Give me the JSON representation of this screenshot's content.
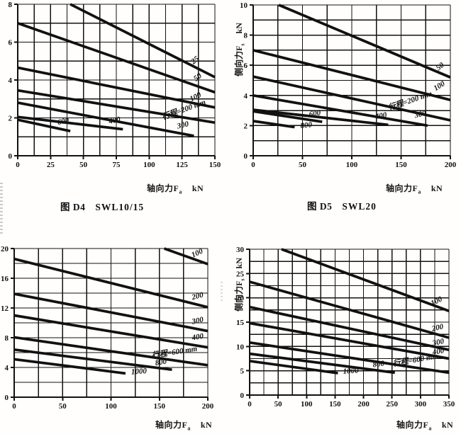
{
  "page": {
    "background": "#ffffff",
    "ink": "#111111"
  },
  "chart_data": [
    {
      "id": "top-left",
      "type": "line",
      "caption_fig": "图 D4",
      "caption_model": "SWL10/15",
      "xlabel": "轴向力F",
      "xlabel_sub": "a",
      "x_unit": "kN",
      "ylabel": "",
      "ylabel_sub": "",
      "y_unit": "",
      "xlim": [
        0,
        150
      ],
      "ylim": [
        0,
        8
      ],
      "x_ticks": [
        0,
        25,
        50,
        75,
        100,
        125,
        150
      ],
      "y_ticks": [
        0,
        2,
        4,
        6,
        8
      ],
      "x_grid_step": 12.5,
      "y_grid_step": 1,
      "grid": true,
      "legend": "labels-on-lines",
      "series": [
        {
          "stroke_mm": 25,
          "label": "25",
          "points": [
            [
              40,
              8.0
            ],
            [
              150,
              4.15
            ]
          ],
          "label_at": [
            136,
            4.95
          ],
          "label_rot": -38
        },
        {
          "stroke_mm": 50,
          "label": "50",
          "points": [
            [
              0,
              7.0
            ],
            [
              150,
              3.35
            ]
          ],
          "label_at": [
            138,
            4.05
          ],
          "label_rot": -38
        },
        {
          "stroke_mm": 100,
          "label": "100",
          "points": [
            [
              0,
              4.65
            ],
            [
              150,
              2.55
            ]
          ],
          "label_at": [
            136,
            3.0
          ],
          "label_rot": -27
        },
        {
          "stroke_mm": 200,
          "label": "行程=200 mm",
          "points": [
            [
              0,
              3.45
            ],
            [
              150,
              1.75
            ]
          ],
          "label_at": [
            127,
            2.32
          ],
          "label_rot": -20
        },
        {
          "stroke_mm": 300,
          "label": "300",
          "points": [
            [
              0,
              2.8
            ],
            [
              134,
              1.05
            ]
          ],
          "label_at": [
            126,
            1.5
          ],
          "label_rot": -13
        },
        {
          "stroke_mm": 400,
          "label": "400",
          "points": [
            [
              0,
              2.05
            ],
            [
              80,
              1.4
            ]
          ],
          "label_at": [
            74,
            1.75
          ],
          "label_rot": -12
        },
        {
          "stroke_mm": 600,
          "label": "600",
          "points": [
            [
              0,
              1.9
            ],
            [
              40,
              1.3
            ]
          ],
          "label_at": [
            35,
            1.7
          ],
          "label_rot": -13
        }
      ]
    },
    {
      "id": "top-right",
      "type": "line",
      "caption_fig": "图 D5",
      "caption_model": "SWL20",
      "xlabel": "轴向力F",
      "xlabel_sub": "a",
      "x_unit": "kN",
      "ylabel": "侧向力F",
      "ylabel_sub": "s",
      "y_unit": "kN",
      "xlim": [
        0,
        200
      ],
      "ylim": [
        0,
        10
      ],
      "x_ticks": [
        0,
        50,
        100,
        150,
        200
      ],
      "y_ticks": [
        0,
        2,
        4,
        6,
        8,
        10
      ],
      "x_grid_step": 25,
      "y_grid_step": 1,
      "grid": true,
      "legend": "labels-on-lines",
      "series": [
        {
          "stroke_mm": 50,
          "label": "50",
          "points": [
            [
              26,
              10.0
            ],
            [
              200,
              5.2
            ]
          ],
          "label_at": [
            191,
            5.8
          ],
          "label_rot": -38
        },
        {
          "stroke_mm": 100,
          "label": "100",
          "points": [
            [
              0,
              7.0
            ],
            [
              200,
              3.7
            ]
          ],
          "label_at": [
            190,
            4.5
          ],
          "label_rot": -32
        },
        {
          "stroke_mm": 200,
          "label": "行程=200 mm",
          "points": [
            [
              0,
              5.25
            ],
            [
              200,
              2.35
            ]
          ],
          "label_at": [
            160,
            3.5
          ],
          "label_rot": -19
        },
        {
          "stroke_mm": 300,
          "label": "300",
          "points": [
            [
              0,
              4.0
            ],
            [
              177,
              2.0
            ]
          ],
          "label_at": [
            170,
            2.6
          ],
          "label_rot": -13
        },
        {
          "stroke_mm": 400,
          "label": "400",
          "points": [
            [
              0,
              3.05
            ],
            [
              137,
              2.05
            ]
          ],
          "label_at": [
            130,
            2.5
          ],
          "label_rot": -10
        },
        {
          "stroke_mm": 600,
          "label": "600",
          "points": [
            [
              0,
              2.95
            ],
            [
              70,
              2.25
            ]
          ],
          "label_at": [
            63,
            2.65
          ],
          "label_rot": -10
        },
        {
          "stroke_mm": 800,
          "label": "800",
          "points": [
            [
              0,
              2.3
            ],
            [
              42,
              1.9
            ]
          ],
          "label_at": [
            54,
            1.87
          ],
          "label_rot": -6
        }
      ]
    },
    {
      "id": "bottom-left",
      "type": "line",
      "caption_fig": "",
      "caption_model": "",
      "xlabel": "轴向力F",
      "xlabel_sub": "a",
      "x_unit": "kN",
      "ylabel": "",
      "ylabel_sub": "",
      "y_unit": "",
      "xlim": [
        0,
        200
      ],
      "ylim": [
        0,
        20
      ],
      "x_ticks": [
        0,
        50,
        100,
        150,
        200
      ],
      "y_ticks": [
        0,
        4,
        8,
        12,
        16,
        20
      ],
      "x_grid_step": 25,
      "y_grid_step": 2,
      "grid": true,
      "legend": "labels-on-lines",
      "series": [
        {
          "stroke_mm": 100,
          "label": "100",
          "points": [
            [
              155,
              20.0
            ],
            [
              200,
              17.9
            ]
          ],
          "label_at": [
            190,
            19.1
          ],
          "label_rot": -25
        },
        {
          "stroke_mm": 200,
          "label": "200",
          "points": [
            [
              0,
              18.6
            ],
            [
              200,
              12.1
            ]
          ],
          "label_at": [
            190,
            13.3
          ],
          "label_rot": -14
        },
        {
          "stroke_mm": 300,
          "label": "300",
          "points": [
            [
              0,
              13.9
            ],
            [
              200,
              8.9
            ]
          ],
          "label_at": [
            190,
            10.0
          ],
          "label_rot": -12
        },
        {
          "stroke_mm": 400,
          "label": "400",
          "points": [
            [
              0,
              11.0
            ],
            [
              200,
              6.7
            ]
          ],
          "label_at": [
            190,
            7.8
          ],
          "label_rot": -10
        },
        {
          "stroke_mm": 600,
          "label": "行程=600 mm",
          "points": [
            [
              0,
              8.05
            ],
            [
              200,
              4.3
            ]
          ],
          "label_at": [
            166,
            5.75
          ],
          "label_rot": -9
        },
        {
          "stroke_mm": 800,
          "label": "800",
          "points": [
            [
              0,
              6.4
            ],
            [
              163,
              3.7
            ]
          ],
          "label_at": [
            152,
            4.4
          ],
          "label_rot": -10
        },
        {
          "stroke_mm": 1000,
          "label": "1000",
          "points": [
            [
              0,
              5.1
            ],
            [
              115,
              3.2
            ]
          ],
          "label_at": [
            129,
            3.15
          ],
          "label_rot": -4
        }
      ]
    },
    {
      "id": "bottom-right",
      "type": "line",
      "caption_fig": "",
      "caption_model": "",
      "xlabel": "轴向力F",
      "xlabel_sub": "a",
      "x_unit": "kN",
      "ylabel": "侧向力F",
      "ylabel_sub": "s",
      "y_unit": "kN",
      "xlim": [
        0,
        350
      ],
      "ylim": [
        0,
        30
      ],
      "x_ticks": [
        0,
        50,
        100,
        150,
        200,
        250,
        300,
        350
      ],
      "y_ticks": [
        0,
        5,
        10,
        15,
        20,
        25,
        30
      ],
      "x_grid_step": 25,
      "y_grid_step": 2.5,
      "grid": true,
      "legend": "labels-on-lines",
      "series": [
        {
          "stroke_mm": 100,
          "label": "100",
          "points": [
            [
              56,
              30.0
            ],
            [
              350,
              17.3
            ]
          ],
          "label_at": [
            330,
            18.9
          ],
          "label_rot": -27
        },
        {
          "stroke_mm": 200,
          "label": "200",
          "points": [
            [
              0,
              23.3
            ],
            [
              350,
              11.8
            ]
          ],
          "label_at": [
            331,
            13.4
          ],
          "label_rot": -14
        },
        {
          "stroke_mm": 300,
          "label": "300",
          "points": [
            [
              0,
              18.1
            ],
            [
              350,
              9.3
            ]
          ],
          "label_at": [
            332,
            10.4
          ],
          "label_rot": -12
        },
        {
          "stroke_mm": 400,
          "label": "400",
          "points": [
            [
              0,
              14.8
            ],
            [
              350,
              7.5
            ]
          ],
          "label_at": [
            332,
            8.5
          ],
          "label_rot": -10
        },
        {
          "stroke_mm": 600,
          "label": "行程=600 mm",
          "points": [
            [
              0,
              10.8
            ],
            [
              350,
              4.6
            ]
          ],
          "label_at": [
            292,
            6.75
          ],
          "label_rot": -10
        },
        {
          "stroke_mm": 800,
          "label": "800",
          "points": [
            [
              0,
              8.5
            ],
            [
              255,
              4.6
            ]
          ],
          "label_at": [
            227,
            5.9
          ],
          "label_rot": -8
        },
        {
          "stroke_mm": 1000,
          "label": "1000",
          "points": [
            [
              0,
              7.0
            ],
            [
              155,
              4.5
            ]
          ],
          "label_at": [
            178,
            4.5
          ],
          "label_rot": -4
        }
      ]
    }
  ]
}
